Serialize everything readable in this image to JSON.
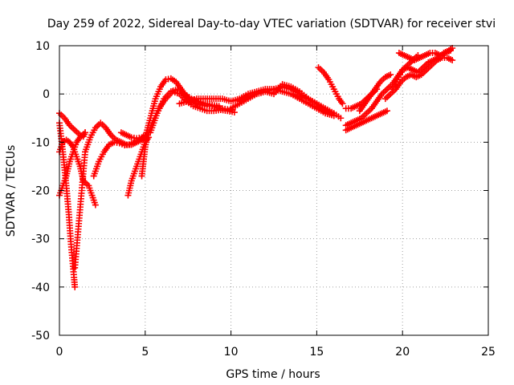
{
  "chart_data": {
    "type": "scatter",
    "title": "Day 259 of 2022, Sidereal Day-to-day VTEC variation (SDTVAR) for receiver stvi",
    "xlabel": "GPS time / hours",
    "ylabel": "SDTVAR / TECUs",
    "xlim": [
      0,
      25
    ],
    "ylim": [
      -50,
      10
    ],
    "xticks": [
      0,
      5,
      10,
      15,
      20,
      25
    ],
    "yticks": [
      -50,
      -40,
      -30,
      -20,
      -10,
      0,
      10
    ],
    "grid": true,
    "legend": "none",
    "marker": "+",
    "color": "#ff0000",
    "series": [
      {
        "x": [
          0.0,
          0.3,
          0.6,
          0.9,
          1.2,
          1.4,
          1.5
        ],
        "y": [
          -4,
          -5,
          -6.5,
          -7.5,
          -8.5,
          -8.8,
          -8
        ]
      },
      {
        "x": [
          0.0,
          0.2,
          0.4,
          0.55,
          0.65,
          0.75,
          0.85,
          0.9
        ],
        "y": [
          -6,
          -12,
          -19,
          -25,
          -30,
          -34,
          -38,
          -40
        ]
      },
      {
        "x": [
          0.9,
          1.0,
          1.1,
          1.2,
          1.3,
          1.4,
          1.5
        ],
        "y": [
          -36,
          -32,
          -28,
          -24,
          -20,
          -16,
          -12
        ]
      },
      {
        "x": [
          0.0,
          0.2,
          0.4,
          0.6,
          0.8,
          1.0,
          1.2,
          1.4,
          1.7,
          1.9,
          2.1
        ],
        "y": [
          -12,
          -10,
          -9.5,
          -10,
          -11,
          -13,
          -15,
          -18,
          -19,
          -21,
          -23
        ]
      },
      {
        "x": [
          0.0,
          0.2,
          0.4,
          0.6,
          0.8,
          1.0,
          1.2,
          1.5
        ],
        "y": [
          -21,
          -19,
          -17,
          -14,
          -12,
          -10,
          -9,
          -8
        ]
      },
      {
        "x": [
          1.5,
          1.8,
          2.1,
          2.4,
          2.7,
          3.0,
          3.3,
          3.6,
          3.9,
          4.2,
          4.5,
          4.8,
          5.0
        ],
        "y": [
          -12,
          -9,
          -7,
          -6,
          -7,
          -8.5,
          -9.5,
          -10,
          -10.5,
          -10.5,
          -10,
          -9.5,
          -9
        ]
      },
      {
        "x": [
          2.0,
          2.3,
          2.6,
          2.9,
          3.2,
          3.5,
          3.8,
          4.1,
          4.4,
          4.7,
          5.0
        ],
        "y": [
          -17,
          -14,
          -12,
          -10.5,
          -10,
          -10.2,
          -10.6,
          -10.5,
          -10,
          -9.5,
          -9
        ]
      },
      {
        "x": [
          3.6,
          3.9,
          4.2,
          4.5,
          4.8,
          5.0
        ],
        "y": [
          -8,
          -8.5,
          -9,
          -9.2,
          -9,
          -8.5
        ]
      },
      {
        "x": [
          4.0,
          4.2,
          4.4,
          4.6,
          4.8,
          5.0,
          5.2
        ],
        "y": [
          -21,
          -18,
          -16,
          -14,
          -12,
          -10,
          -9
        ]
      },
      {
        "x": [
          4.8,
          4.9,
          5.0,
          5.1,
          5.2
        ],
        "y": [
          -17,
          -14,
          -11,
          -9,
          -8
        ]
      },
      {
        "x": [
          5.0,
          5.3,
          5.6,
          5.9,
          6.2,
          6.5,
          6.8,
          7.1,
          7.4,
          7.7,
          8.0,
          8.3,
          8.6,
          8.9,
          9.2,
          9.5,
          9.8,
          10.1
        ],
        "y": [
          -9,
          -5,
          -1,
          1.5,
          3,
          3.2,
          2.5,
          1,
          -0.5,
          -1.5,
          -2,
          -2.3,
          -2.5,
          -2.5,
          -2.8,
          -3,
          -3.2,
          -3.3
        ]
      },
      {
        "x": [
          5.0,
          5.4,
          5.8,
          6.2,
          6.6,
          7.0,
          7.4,
          7.8,
          8.2,
          8.6,
          9.0,
          9.4,
          9.8,
          10.2
        ],
        "y": [
          -10,
          -6,
          -3,
          -1,
          0.5,
          0,
          -1.5,
          -2.5,
          -3,
          -3.5,
          -3.5,
          -3.3,
          -3.5,
          -3.8
        ]
      },
      {
        "x": [
          5.3,
          5.7,
          6.1,
          6.5,
          6.9,
          7.3,
          7.7,
          8.1,
          8.5,
          8.9,
          9.3
        ],
        "y": [
          -8,
          -4,
          -1,
          0.5,
          1,
          0,
          -1,
          -1.5,
          -2,
          -2.3,
          -2.5
        ]
      },
      {
        "x": [
          7.0,
          7.5,
          8.0,
          8.5,
          9.0,
          9.5,
          10.0,
          10.5,
          11.0,
          11.5,
          12.0,
          12.5,
          13.0,
          13.5,
          14.0,
          14.5,
          15.0
        ],
        "y": [
          -2,
          -1.5,
          -1,
          -1,
          -1,
          -1,
          -1.5,
          -1,
          0,
          0.5,
          1,
          1,
          0.5,
          0,
          -0.5,
          -1,
          -2
        ]
      },
      {
        "x": [
          10.0,
          10.5,
          11.0,
          11.5,
          12.0,
          12.5,
          13.0,
          13.5,
          14.0,
          14.5,
          15.0,
          15.5,
          16.0,
          16.4
        ],
        "y": [
          -3,
          -2,
          -1,
          0,
          0.5,
          1,
          1.5,
          1,
          0,
          -1,
          -2,
          -3,
          -4,
          -5
        ]
      },
      {
        "x": [
          10.5,
          11.0,
          11.5,
          12.0,
          12.5,
          13.0,
          13.5,
          14.0,
          14.5,
          15.0,
          15.5,
          16.0
        ],
        "y": [
          -1.5,
          -0.5,
          0,
          0.5,
          0,
          2,
          1.5,
          0.5,
          -1,
          -2.5,
          -3.5,
          -4.5
        ]
      },
      {
        "x": [
          13.5,
          14.0,
          14.5,
          15.0,
          15.5,
          16.0
        ],
        "y": [
          0,
          -1,
          -2,
          -3,
          -4,
          -4.5
        ]
      },
      {
        "x": [
          15.1,
          15.4,
          15.7,
          16.0,
          16.3,
          16.5
        ],
        "y": [
          5.5,
          4.5,
          3,
          1,
          -1,
          -2
        ]
      },
      {
        "x": [
          16.7,
          17.0,
          17.3,
          17.6,
          17.9,
          18.2,
          18.5,
          18.8,
          19.1
        ],
        "y": [
          -7.5,
          -7,
          -6.5,
          -6,
          -5.5,
          -5,
          -4.5,
          -4,
          -3.5
        ]
      },
      {
        "x": [
          16.7,
          17.0,
          17.3,
          17.6,
          17.9,
          18.2,
          18.5,
          18.8,
          19.1,
          19.4,
          19.7,
          20.0,
          20.3,
          20.6,
          20.9
        ],
        "y": [
          -6.5,
          -6,
          -5.5,
          -5,
          -4,
          -3,
          -1.5,
          0,
          1,
          2,
          3.5,
          5,
          6,
          7,
          8
        ]
      },
      {
        "x": [
          16.7,
          17.0,
          17.3,
          17.6,
          17.9,
          18.2,
          18.5
        ],
        "y": [
          -3,
          -3,
          -2.5,
          -2,
          -1,
          0,
          1
        ]
      },
      {
        "x": [
          17.5,
          17.8,
          18.1,
          18.4,
          18.7,
          19.0,
          19.3
        ],
        "y": [
          -3.5,
          -2,
          -0.5,
          1,
          2.5,
          3.5,
          4
        ]
      },
      {
        "x": [
          19.0,
          19.3,
          19.6,
          19.9,
          20.2,
          20.5,
          20.8,
          21.1,
          21.4,
          21.7,
          22.0,
          22.3,
          22.6,
          22.9
        ],
        "y": [
          -1,
          0,
          1,
          2.5,
          3.5,
          4,
          3.5,
          4,
          5,
          6,
          7,
          7.5,
          7.5,
          7
        ]
      },
      {
        "x": [
          19.4,
          19.7,
          20.0,
          20.3,
          20.6,
          20.9,
          21.2,
          21.5,
          21.8,
          22.1,
          22.4,
          22.7,
          22.9
        ],
        "y": [
          1,
          3,
          5,
          5.5,
          5,
          4.5,
          5.5,
          6.5,
          7,
          7.5,
          8.5,
          9,
          9.5
        ]
      },
      {
        "x": [
          19.8,
          20.1,
          20.4,
          20.7,
          21.0,
          21.3,
          21.6,
          21.9,
          22.2,
          22.5,
          22.8
        ],
        "y": [
          8.5,
          8,
          7.5,
          7,
          7.5,
          8,
          8.5,
          8.5,
          8,
          8.5,
          9
        ]
      }
    ]
  }
}
